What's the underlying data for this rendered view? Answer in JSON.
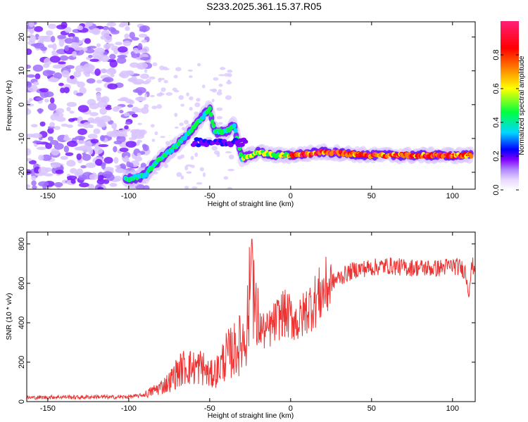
{
  "title": "S233.2025.361.15.37.R05",
  "chart_data": [
    {
      "type": "heatmap",
      "title": "S233.2025.361.15.37.R05",
      "xlabel": "Height of straight line (km)",
      "ylabel": "Frequency (Hz)",
      "xlim": [
        -163,
        114
      ],
      "ylim": [
        -25,
        24.5
      ],
      "xticks": [
        -150,
        -100,
        -50,
        0,
        50,
        100
      ],
      "yticks": [
        -20,
        -10,
        0,
        10,
        20
      ],
      "colorbar": {
        "label": "Normalized spectral amplitude",
        "range": [
          0.0,
          1.0
        ],
        "ticks": [
          0.0,
          0.2,
          0.4,
          0.6,
          0.8
        ],
        "ticklabels": [
          "0.0",
          "0.2",
          "0.4",
          "0.6",
          "0.8"
        ],
        "colors": [
          "#ffffff",
          "#b088ff",
          "#8000ff",
          "#0000ff",
          "#00d8ff",
          "#00ff40",
          "#ffff00",
          "#ff8000",
          "#ff0000",
          "#ff1e78"
        ]
      },
      "ridge": [
        {
          "x": -100,
          "f": -22
        },
        {
          "x": -90,
          "f": -21
        },
        {
          "x": -85,
          "f": -18
        },
        {
          "x": -78,
          "f": -15
        },
        {
          "x": -70,
          "f": -12
        },
        {
          "x": -62,
          "f": -8
        },
        {
          "x": -55,
          "f": -4
        },
        {
          "x": -50,
          "f": -1
        },
        {
          "x": -47,
          "f": -8
        },
        {
          "x": -40,
          "f": -8
        },
        {
          "x": -35,
          "f": -6
        },
        {
          "x": -30,
          "f": -16
        },
        {
          "x": -20,
          "f": -14
        },
        {
          "x": -10,
          "f": -15
        },
        {
          "x": 0,
          "f": -15
        },
        {
          "x": 20,
          "f": -14
        },
        {
          "x": 50,
          "f": -15
        },
        {
          "x": 80,
          "f": -15
        },
        {
          "x": 110,
          "f": -15
        }
      ]
    },
    {
      "type": "line",
      "xlabel": "Height of straight line (km)",
      "ylabel": "SNR (10 * v/v)",
      "xlim": [
        -163,
        114
      ],
      "ylim": [
        0,
        860
      ],
      "xticks": [
        -150,
        -100,
        -50,
        0,
        50,
        100
      ],
      "yticks": [
        0,
        200,
        400,
        600,
        800
      ],
      "color": "#ee3333",
      "series": [
        {
          "name": "SNR",
          "x": [
            -163,
            -150,
            -140,
            -130,
            -120,
            -110,
            -100,
            -95,
            -90,
            -85,
            -80,
            -75,
            -70,
            -65,
            -60,
            -55,
            -50,
            -45,
            -40,
            -35,
            -30,
            -27,
            -25,
            -24,
            -22,
            -20,
            -15,
            -10,
            -5,
            0,
            5,
            10,
            15,
            20,
            25,
            30,
            35,
            40,
            50,
            60,
            70,
            80,
            90,
            100,
            105,
            108,
            110,
            112,
            114
          ],
          "y": [
            20,
            22,
            24,
            22,
            25,
            22,
            25,
            28,
            35,
            55,
            75,
            100,
            150,
            180,
            170,
            180,
            130,
            160,
            230,
            260,
            300,
            380,
            560,
            860,
            420,
            380,
            350,
            400,
            450,
            430,
            400,
            470,
            510,
            560,
            600,
            630,
            650,
            670,
            680,
            690,
            680,
            680,
            675,
            690,
            680,
            660,
            560,
            690,
            680
          ]
        }
      ]
    }
  ]
}
